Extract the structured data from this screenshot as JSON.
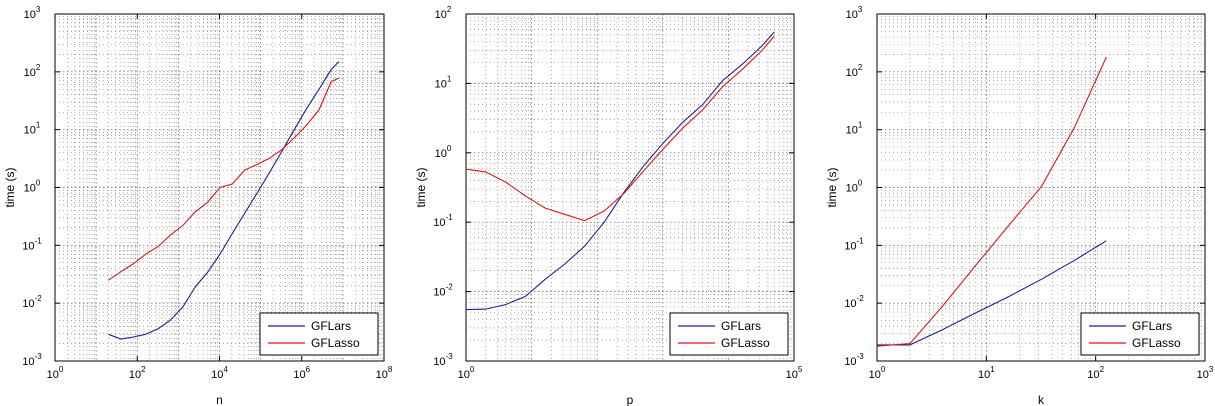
{
  "figure": {
    "panels": [
      "panel_n",
      "panel_p",
      "panel_k"
    ]
  },
  "colors": {
    "GFLars": "#1f1f8f",
    "GFLasso": "#e0141c"
  },
  "chart_data": [
    {
      "id": "panel_n",
      "type": "line",
      "xscale": "log",
      "yscale": "log",
      "xlim": [
        1,
        100000000
      ],
      "ylim": [
        0.001,
        1000
      ],
      "xlabel": "n",
      "ylabel": "time (s)",
      "xticks": [
        1,
        100,
        10000,
        1000000,
        100000000
      ],
      "xtick_labels": [
        [
          "10",
          "0"
        ],
        [
          "10",
          "2"
        ],
        [
          "10",
          "4"
        ],
        [
          "10",
          "6"
        ],
        [
          "10",
          "8"
        ]
      ],
      "yticks": [
        0.001,
        0.01,
        0.1,
        1,
        10,
        100,
        1000
      ],
      "ytick_labels": [
        [
          "10",
          "-3"
        ],
        [
          "10",
          "-2"
        ],
        [
          "10",
          "-1"
        ],
        [
          "10",
          "0"
        ],
        [
          "10",
          "1"
        ],
        [
          "10",
          "2"
        ],
        [
          "10",
          "3"
        ]
      ],
      "grid": true,
      "legend": {
        "placement": "bottom-right",
        "entries": [
          "GFLars",
          "GFLasso"
        ]
      },
      "series": [
        {
          "name": "GFLars",
          "x": [
            20,
            40,
            80,
            160,
            320,
            640,
            1280,
            2560,
            5120,
            10240,
            20480,
            40960,
            81920,
            163840,
            327680,
            655360,
            1310720,
            2621440,
            5242880,
            8000000
          ],
          "y": [
            0.0029,
            0.0024,
            0.0026,
            0.0029,
            0.0036,
            0.0051,
            0.0086,
            0.019,
            0.034,
            0.07,
            0.16,
            0.36,
            0.8,
            1.8,
            4.2,
            10,
            23,
            50,
            110,
            150
          ]
        },
        {
          "name": "GFLasso",
          "x": [
            20,
            40,
            80,
            160,
            320,
            640,
            1280,
            2560,
            5120,
            10240,
            20480,
            40960,
            81920,
            163840,
            327680,
            655360,
            1310720,
            2621440,
            5242880,
            8000000
          ],
          "y": [
            0.025,
            0.035,
            0.048,
            0.07,
            0.095,
            0.15,
            0.22,
            0.38,
            0.55,
            1.0,
            1.15,
            2.0,
            2.5,
            3.2,
            4.5,
            7.2,
            12,
            22,
            68,
            78
          ]
        }
      ]
    },
    {
      "id": "panel_p",
      "type": "line",
      "xscale": "log",
      "yscale": "log",
      "xlim": [
        1,
        100000
      ],
      "ylim": [
        0.001,
        100
      ],
      "xlabel": "p",
      "ylabel": "time (s)",
      "xticks": [
        1,
        100000
      ],
      "xtick_labels": [
        [
          "10",
          "0"
        ],
        [
          "10",
          "5"
        ]
      ],
      "yticks": [
        0.001,
        0.01,
        0.1,
        1,
        10,
        100
      ],
      "ytick_labels": [
        [
          "10",
          "-3"
        ],
        [
          "10",
          "-2"
        ],
        [
          "10",
          "-1"
        ],
        [
          "10",
          "0"
        ],
        [
          "10",
          "1"
        ],
        [
          "10",
          "2"
        ]
      ],
      "grid": true,
      "legend": {
        "placement": "bottom-right",
        "entries": [
          "GFLars",
          "GFLasso"
        ]
      },
      "series": [
        {
          "name": "GFLars",
          "x": [
            1,
            2,
            4,
            8,
            16,
            32,
            64,
            128,
            256,
            512,
            1024,
            2048,
            4096,
            8192,
            16384,
            32768,
            50000
          ],
          "y": [
            0.0055,
            0.0056,
            0.0065,
            0.0085,
            0.015,
            0.025,
            0.045,
            0.1,
            0.27,
            0.65,
            1.4,
            2.8,
            5.0,
            11,
            19,
            35,
            55
          ]
        },
        {
          "name": "GFLasso",
          "x": [
            1,
            2,
            4,
            8,
            16,
            32,
            64,
            128,
            256,
            512,
            1024,
            2048,
            4096,
            8192,
            16384,
            32768,
            50000
          ],
          "y": [
            0.58,
            0.53,
            0.38,
            0.24,
            0.16,
            0.13,
            0.105,
            0.145,
            0.26,
            0.55,
            1.15,
            2.3,
            4.2,
            9.0,
            16,
            30,
            48
          ]
        }
      ]
    },
    {
      "id": "panel_k",
      "type": "line",
      "xscale": "log",
      "yscale": "log",
      "xlim": [
        1,
        1000
      ],
      "ylim": [
        0.001,
        1000
      ],
      "xlabel": "k",
      "ylabel": "time (s)",
      "xticks": [
        1,
        10,
        100,
        1000
      ],
      "xtick_labels": [
        [
          "10",
          "0"
        ],
        [
          "10",
          "1"
        ],
        [
          "10",
          "2"
        ],
        [
          "10",
          "3"
        ]
      ],
      "yticks": [
        0.001,
        0.01,
        0.1,
        1,
        10,
        100,
        1000
      ],
      "ytick_labels": [
        [
          "10",
          "-3"
        ],
        [
          "10",
          "-2"
        ],
        [
          "10",
          "-1"
        ],
        [
          "10",
          "0"
        ],
        [
          "10",
          "1"
        ],
        [
          "10",
          "2"
        ],
        [
          "10",
          "3"
        ]
      ],
      "grid": true,
      "legend": {
        "placement": "bottom-right",
        "entries": [
          "GFLars",
          "GFLasso"
        ]
      },
      "series": [
        {
          "name": "GFLars",
          "x": [
            1,
            2,
            4,
            8,
            16,
            32,
            64,
            125
          ],
          "y": [
            0.0019,
            0.0019,
            0.0035,
            0.0068,
            0.013,
            0.026,
            0.055,
            0.12
          ]
        },
        {
          "name": "GFLasso",
          "x": [
            1,
            2,
            4,
            8,
            16,
            32,
            64,
            125
          ],
          "y": [
            0.0018,
            0.002,
            0.009,
            0.045,
            0.22,
            1.05,
            11,
            180
          ]
        }
      ]
    }
  ]
}
